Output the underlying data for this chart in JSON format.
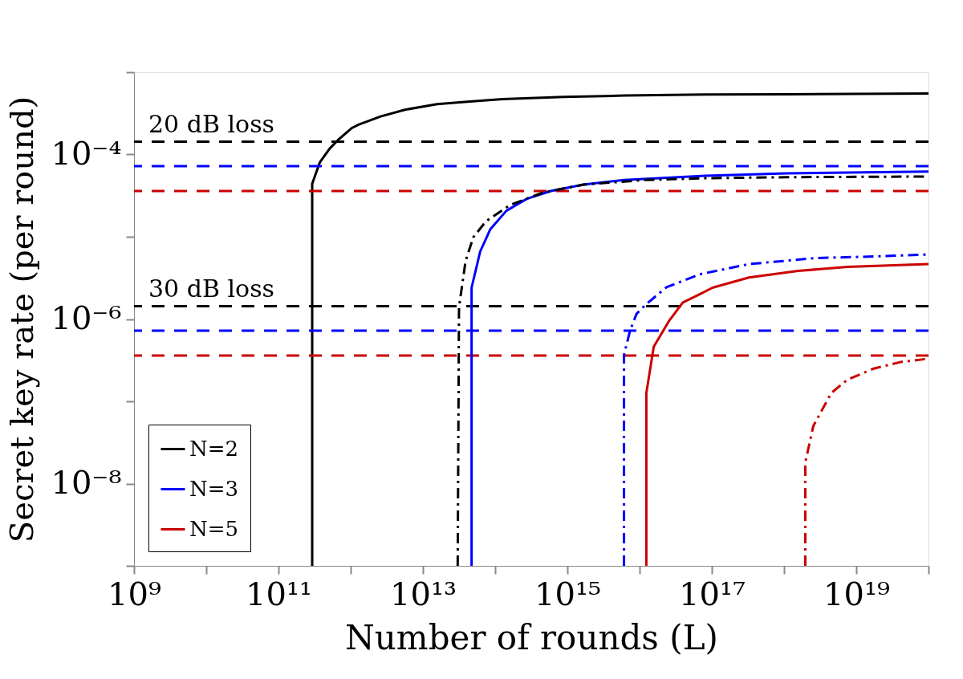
{
  "chart_data": {
    "type": "line",
    "xlabel": "Number of rounds (L)",
    "ylabel": "Secret key rate (per round)",
    "log": "xy",
    "grid": false,
    "legend": "bottom left",
    "xlim": [
      1000000000.0,
      1e+20
    ],
    "ylim": [
      1e-09,
      0.001
    ],
    "xticks": [
      {
        "value": 1000000000.0,
        "label": "10⁹"
      },
      {
        "value": 10000000000.0,
        "label": null
      },
      {
        "value": 100000000000.0,
        "label": "10¹¹"
      },
      {
        "value": 1000000000000.0,
        "label": null
      },
      {
        "value": 10000000000000.0,
        "label": "10¹³"
      },
      {
        "value": 100000000000000.0,
        "label": null
      },
      {
        "value": 1000000000000000.0,
        "label": "10¹⁵"
      },
      {
        "value": 1e+16,
        "label": null
      },
      {
        "value": 1e+17,
        "label": "10¹⁷"
      },
      {
        "value": 1e+18,
        "label": null
      },
      {
        "value": 1e+19,
        "label": "10¹⁹"
      },
      {
        "value": 1e+20,
        "label": null
      }
    ],
    "yticks": [
      {
        "value": 1e-09,
        "label": null
      },
      {
        "value": 1e-08,
        "label": "10⁻⁸"
      },
      {
        "value": 1e-07,
        "label": null
      },
      {
        "value": 1e-06,
        "label": "10⁻⁶"
      },
      {
        "value": 1e-05,
        "label": null
      },
      {
        "value": 0.0001,
        "label": "10⁻⁴"
      },
      {
        "value": 0.001,
        "label": null
      }
    ],
    "series": [
      {
        "name": "N=2",
        "color": "#000000",
        "line_style": "solid",
        "x": [
          293000000000.0,
          293000000000.0,
          373000000000.0,
          512000000000.0,
          668000000000.0,
          1040000000000.0,
          1280000000000.0,
          2590000000000.0,
          5640000000000.0,
          15700000000000.0,
          44500000000000.0,
          126000000000000.0,
          885000000000000.0,
          6080000000000000.0,
          8.07e+16,
          1.07e+18,
          1e+20
        ],
        "values": [
          1e-09,
          4.4e-05,
          8e-05,
          0.000118,
          0.00015,
          0.00021,
          0.00023,
          0.00029,
          0.00035,
          0.00041,
          0.00044,
          0.00047,
          0.0005,
          0.00052,
          0.000535,
          0.00054,
          0.00055
        ]
      },
      {
        "name": "N=3",
        "color": "#0000ff",
        "line_style": "solid",
        "x": [
          47200000000000.0,
          47200000000000.0,
          62000000000000.0,
          86000000000000.0,
          143000000000000.0,
          276000000000000.0,
          590000000000000.0,
          1670000000000000.0,
          6100000000000000.0,
          8.1e+16,
          1.07e+18,
          1e+20
        ],
        "values": [
          1e-09,
          2.4e-06,
          6.6e-06,
          1.24e-05,
          2.07e-05,
          2.9e-05,
          3.6e-05,
          4.3e-05,
          4.9e-05,
          5.5e-05,
          5.9e-05,
          6.2e-05
        ]
      },
      {
        "name": "N=5",
        "color": "#cc0000",
        "line_style": "solid",
        "x": [
          1.24e+16,
          1.24e+16,
          1.57e+16,
          2.58e+16,
          3.97e+16,
          6.8e+16,
          1.02e+17,
          3.26e+17,
          1.57e+18,
          7.6e+18,
          1e+20
        ],
        "values": [
          1e-09,
          1.26e-07,
          4.6e-07,
          9.6e-07,
          1.59e-06,
          2e-06,
          2.4e-06,
          3.2e-06,
          3.85e-06,
          4.3e-06,
          4.65e-06
        ]
      },
      {
        "color": "#000000",
        "line_style": "dashdot",
        "x": [
          30300000000000.0,
          31600000000000.0,
          39000000000000.0,
          50000000000000.0,
          75000000000000.0,
          162000000000000.0,
          460000000000000.0,
          1670000000000000.0,
          1.17e+16,
          8.1e+16,
          1.07e+18,
          1e+20
        ],
        "values": [
          1e-09,
          1.39e-06,
          5.1e-06,
          9.9e-06,
          1.55e-05,
          2.44e-05,
          3.45e-05,
          4.3e-05,
          4.9e-05,
          5.15e-05,
          5.3e-05,
          5.4e-05
        ]
      },
      {
        "color": "#0000ff",
        "line_style": "dashdot",
        "x": [
          6080000000000000.0,
          6080000000000000.0,
          7400000000000000.0,
          9100000000000000.0,
          1.24e+16,
          2.35e+16,
          6.8e+16,
          3.26e+17,
          2.67e+18,
          2.19e+19,
          1e+20
        ],
        "values": [
          1e-09,
          3.66e-07,
          7.3e-07,
          1.16e-06,
          1.52e-06,
          2.43e-06,
          3.5e-06,
          4.65e-06,
          5.5e-06,
          5.8e-06,
          6.1e-06
        ]
      },
      {
        "color": "#cc0000",
        "line_style": "dashdot",
        "x": [
          1.97e+18,
          1.97e+18,
          2.54e+18,
          4.5e+18,
          7.6e+18,
          1.75e+19,
          4.1e+19,
          1e+20
        ],
        "values": [
          1e-09,
          1.81e-08,
          5e-08,
          1.26e-07,
          1.84e-07,
          2.5e-07,
          3e-07,
          3.3e-07
        ]
      }
    ],
    "ref_lines": [
      {
        "axis": "y",
        "value": 0.000143,
        "label": "20 dB loss",
        "color": "#000000",
        "line_style": "dashed"
      },
      {
        "axis": "y",
        "value": 7.2e-05,
        "color": "#0000ff",
        "line_style": "dashed"
      },
      {
        "axis": "y",
        "value": 3.6e-05,
        "color": "#cc0000",
        "line_style": "dashed"
      },
      {
        "axis": "y",
        "value": 1.43e-06,
        "label": "30 dB loss",
        "color": "#000000",
        "line_style": "dashed"
      },
      {
        "axis": "y",
        "value": 7.2e-07,
        "color": "#0000ff",
        "line_style": "dashed"
      },
      {
        "axis": "y",
        "value": 3.6e-07,
        "color": "#cc0000",
        "line_style": "dashed"
      }
    ]
  }
}
